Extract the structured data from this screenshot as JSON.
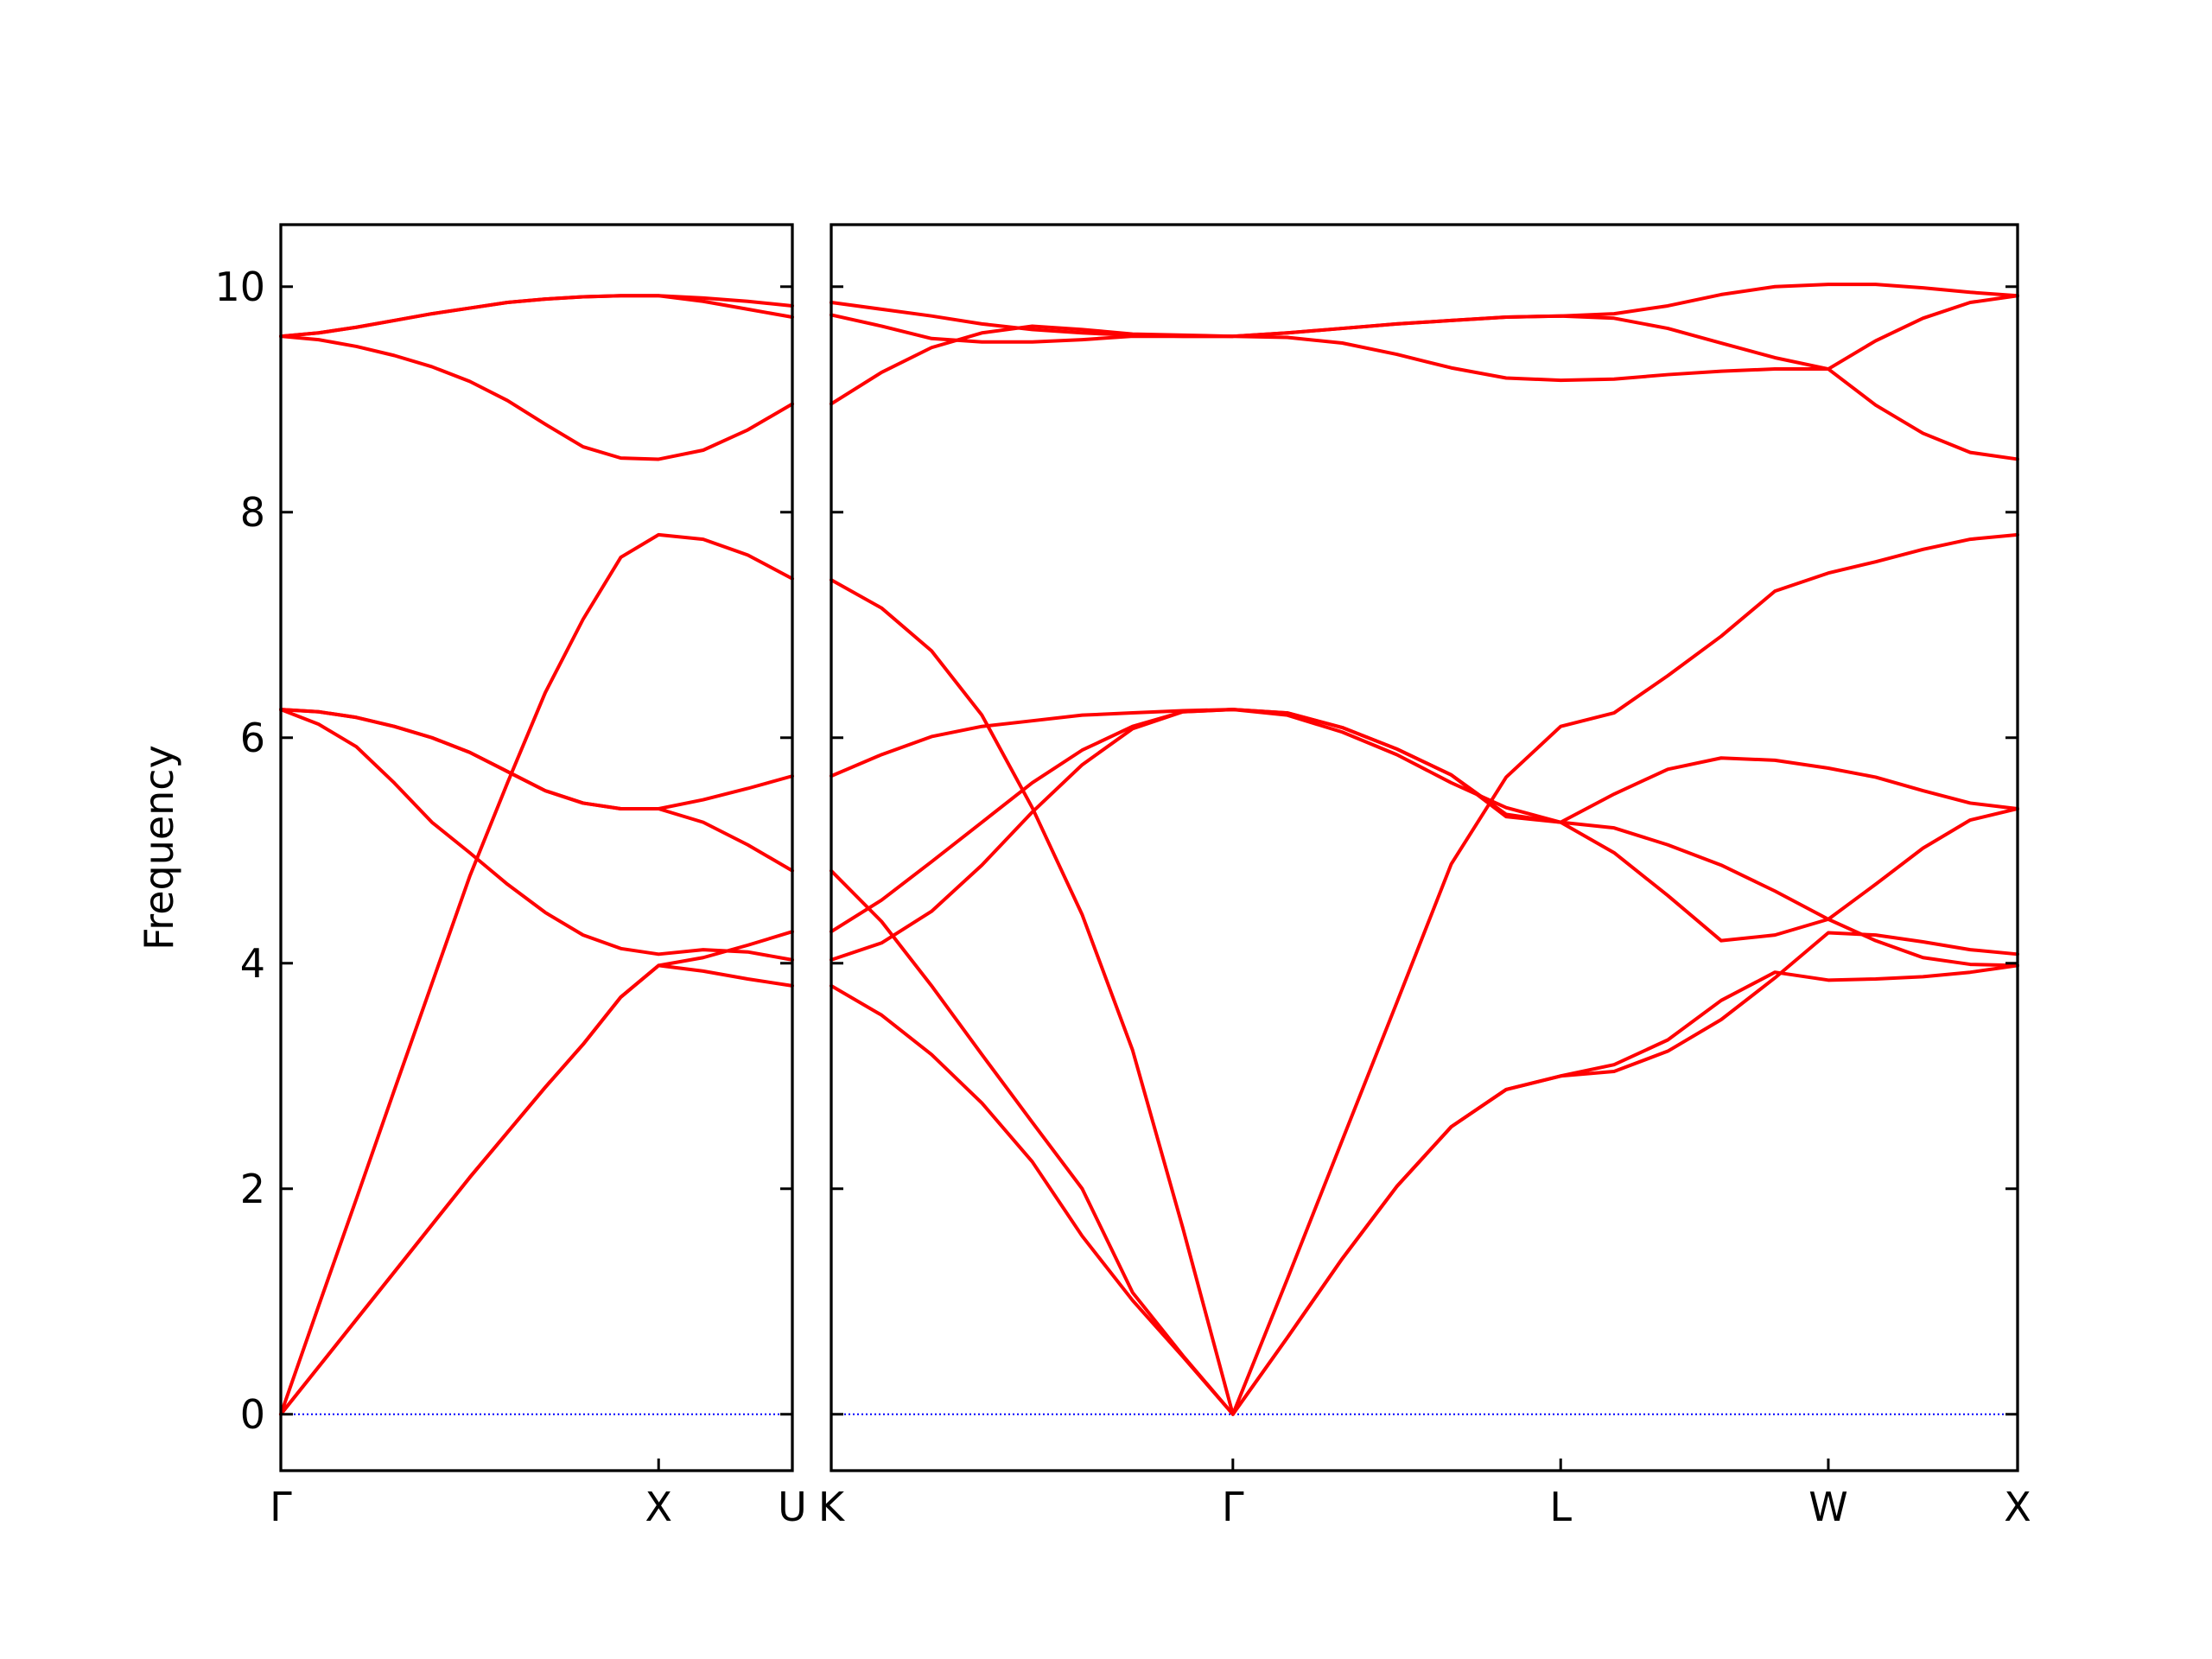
{
  "chart_data": [
    {
      "type": "line",
      "ylabel": "Frequency",
      "yticklabels": true,
      "x": [
        0,
        0.1,
        0.2,
        0.3,
        0.4,
        0.5,
        0.6,
        0.7,
        0.8,
        0.9,
        1.0,
        1.118,
        1.236,
        1.354
      ],
      "xlim": [
        0,
        1.354
      ],
      "xticks": [
        {
          "value": 0,
          "label": "Γ"
        },
        {
          "value": 1.0,
          "label": "X"
        },
        {
          "value": 1.354,
          "label": "U"
        }
      ],
      "ylim": [
        -0.5,
        10.55
      ],
      "yticks": [
        0,
        2,
        4,
        6,
        8,
        10
      ],
      "hline": 0,
      "hline_color": "#0000ff",
      "series": [
        {
          "color": "#ff0000",
          "values": [
            0,
            0.42,
            0.84,
            1.26,
            1.68,
            2.1,
            2.5,
            2.9,
            3.28,
            3.7,
            3.98,
            3.93,
            3.86,
            3.8
          ]
        },
        {
          "color": "#ff0000",
          "values": [
            0,
            0.42,
            0.84,
            1.26,
            1.68,
            2.1,
            2.5,
            2.9,
            3.28,
            3.7,
            3.98,
            4.05,
            4.16,
            4.28
          ]
        },
        {
          "color": "#ff0000",
          "values": [
            0,
            0.96,
            1.91,
            2.87,
            3.82,
            4.77,
            5.6,
            6.4,
            7.05,
            7.6,
            7.8,
            7.76,
            7.62,
            7.41
          ]
        },
        {
          "color": "#ff0000",
          "values": [
            6.25,
            6.12,
            5.92,
            5.6,
            5.25,
            4.98,
            4.7,
            4.45,
            4.25,
            4.13,
            4.08,
            4.12,
            4.1,
            4.03
          ]
        },
        {
          "color": "#ff0000",
          "values": [
            6.25,
            6.23,
            6.18,
            6.1,
            6.0,
            5.87,
            5.7,
            5.53,
            5.42,
            5.37,
            5.37,
            5.45,
            5.55,
            5.66
          ]
        },
        {
          "color": "#ff0000",
          "values": [
            6.25,
            6.23,
            6.18,
            6.1,
            6.0,
            5.87,
            5.7,
            5.53,
            5.42,
            5.37,
            5.37,
            5.25,
            5.05,
            4.82
          ]
        },
        {
          "color": "#ff0000",
          "values": [
            9.56,
            9.53,
            9.47,
            9.39,
            9.29,
            9.16,
            8.99,
            8.78,
            8.58,
            8.48,
            8.47,
            8.55,
            8.73,
            8.96
          ]
        },
        {
          "color": "#ff0000",
          "values": [
            9.56,
            9.59,
            9.64,
            9.7,
            9.76,
            9.81,
            9.86,
            9.89,
            9.91,
            9.92,
            9.92,
            9.9,
            9.87,
            9.83
          ]
        },
        {
          "color": "#ff0000",
          "values": [
            9.56,
            9.59,
            9.64,
            9.7,
            9.76,
            9.81,
            9.86,
            9.89,
            9.91,
            9.92,
            9.92,
            9.87,
            9.8,
            9.73
          ]
        }
      ]
    },
    {
      "type": "line",
      "yticklabels": false,
      "x": [
        0,
        0.133,
        0.265,
        0.398,
        0.531,
        0.663,
        0.796,
        0.929,
        1.061,
        1.205,
        1.35,
        1.494,
        1.638,
        1.783,
        1.927,
        2.068,
        2.21,
        2.351,
        2.493,
        2.634,
        2.759,
        2.884,
        3.009,
        3.134
      ],
      "xlim": [
        0,
        3.134
      ],
      "xticks": [
        {
          "value": 0,
          "label": "K"
        },
        {
          "value": 1.061,
          "label": "Γ"
        },
        {
          "value": 1.927,
          "label": "L"
        },
        {
          "value": 2.634,
          "label": "W"
        },
        {
          "value": 3.134,
          "label": "X"
        }
      ],
      "ylim": [
        -0.5,
        10.55
      ],
      "yticks": [
        0,
        2,
        4,
        6,
        8,
        10
      ],
      "hline": 0,
      "hline_color": "#0000ff",
      "series": [
        {
          "color": "#ff0000",
          "values": [
            3.8,
            3.54,
            3.19,
            2.76,
            2.24,
            1.58,
            1.01,
            0.51,
            0,
            0.68,
            1.38,
            2.02,
            2.55,
            2.88,
            3.0,
            3.1,
            3.32,
            3.67,
            3.92,
            3.85,
            3.86,
            3.88,
            3.92,
            3.98
          ]
        },
        {
          "color": "#ff0000",
          "values": [
            4.82,
            4.37,
            3.8,
            3.19,
            2.59,
            2.0,
            1.08,
            0.52,
            0,
            0.68,
            1.38,
            2.02,
            2.55,
            2.88,
            3.0,
            3.04,
            3.22,
            3.5,
            3.87,
            4.27,
            4.25,
            4.19,
            4.12,
            4.08
          ]
        },
        {
          "color": "#ff0000",
          "values": [
            7.4,
            7.15,
            6.77,
            6.2,
            5.38,
            4.43,
            3.23,
            1.65,
            0,
            1.2,
            2.43,
            3.65,
            4.88,
            5.65,
            6.1,
            6.22,
            6.55,
            6.9,
            7.3,
            7.46,
            7.56,
            7.67,
            7.76,
            7.8
          ]
        },
        {
          "color": "#ff0000",
          "values": [
            4.03,
            4.18,
            4.46,
            4.87,
            5.34,
            5.76,
            6.08,
            6.23,
            6.25,
            6.2,
            6.05,
            5.85,
            5.6,
            5.38,
            5.25,
            5.5,
            5.72,
            5.82,
            5.8,
            5.73,
            5.65,
            5.53,
            5.42,
            5.37
          ]
        },
        {
          "color": "#ff0000",
          "values": [
            4.28,
            4.56,
            4.9,
            5.25,
            5.6,
            5.89,
            6.1,
            6.23,
            6.25,
            6.22,
            6.09,
            5.9,
            5.67,
            5.32,
            5.25,
            4.98,
            4.6,
            4.2,
            4.25,
            4.39,
            4.2,
            4.05,
            3.99,
            3.98
          ]
        },
        {
          "color": "#ff0000",
          "values": [
            5.66,
            5.85,
            6.01,
            6.1,
            6.15,
            6.2,
            6.22,
            6.24,
            6.25,
            6.22,
            6.09,
            5.9,
            5.67,
            5.3,
            5.25,
            5.2,
            5.05,
            4.87,
            4.64,
            4.39,
            4.7,
            5.02,
            5.27,
            5.37
          ]
        },
        {
          "color": "#ff0000",
          "values": [
            8.96,
            9.24,
            9.46,
            9.59,
            9.65,
            9.62,
            9.58,
            9.57,
            9.56,
            9.55,
            9.5,
            9.4,
            9.28,
            9.19,
            9.17,
            9.18,
            9.22,
            9.25,
            9.27,
            9.27,
            8.95,
            8.7,
            8.53,
            8.47
          ]
        },
        {
          "color": "#ff0000",
          "values": [
            9.75,
            9.65,
            9.54,
            9.51,
            9.51,
            9.53,
            9.56,
            9.56,
            9.56,
            9.59,
            9.63,
            9.67,
            9.7,
            9.73,
            9.74,
            9.72,
            9.63,
            9.5,
            9.37,
            9.27,
            9.52,
            9.72,
            9.86,
            9.92
          ]
        },
        {
          "color": "#ff0000",
          "values": [
            9.86,
            9.8,
            9.74,
            9.67,
            9.62,
            9.59,
            9.57,
            9.56,
            9.56,
            9.59,
            9.63,
            9.67,
            9.7,
            9.73,
            9.74,
            9.76,
            9.83,
            9.93,
            10.0,
            10.02,
            10.02,
            9.99,
            9.95,
            9.92
          ]
        }
      ]
    }
  ]
}
